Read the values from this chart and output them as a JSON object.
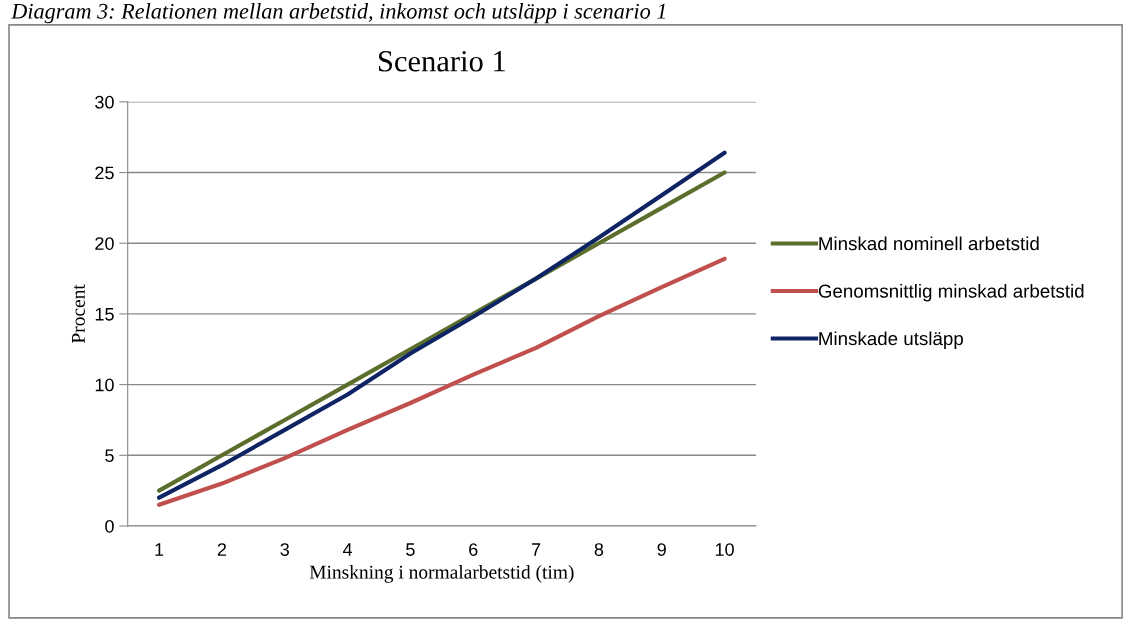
{
  "chart_data": {
    "type": "line",
    "title": "Scenario 1",
    "xlabel": "Minskning i normalarbetstid (tim)",
    "ylabel": "Procent",
    "annotations": [
      "Diagram 3: Relationen mellan arbetstid, inkomst och utsläpp i scenario 1"
    ],
    "categories": [
      "1",
      "2",
      "3",
      "4",
      "5",
      "6",
      "7",
      "8",
      "9",
      "10"
    ],
    "series": [
      {
        "name": "Minskad nominell arbetstid",
        "color": "#5b6e2c",
        "values": [
          2.5,
          5,
          7.5,
          10,
          12.5,
          15,
          17.5,
          20,
          22.5,
          25
        ]
      },
      {
        "name": "Genomsnittlig minskad arbetstid",
        "color": "#c0504d",
        "values": [
          1.5,
          3.0,
          4.8,
          6.8,
          8.7,
          10.7,
          12.6,
          14.85,
          16.9,
          18.9
        ]
      },
      {
        "name": "Minskade utsläpp",
        "color": "#0f2464",
        "values": [
          2.0,
          4.3,
          6.8,
          9.3,
          12.2,
          14.8,
          17.5,
          20.4,
          23.4,
          26.4
        ]
      }
    ],
    "ylim": [
      0,
      30
    ],
    "yticks": [
      0,
      5,
      10,
      15,
      20,
      25,
      30
    ],
    "grid": "y",
    "legend": "right",
    "marker": "none",
    "line_style": "solid"
  }
}
